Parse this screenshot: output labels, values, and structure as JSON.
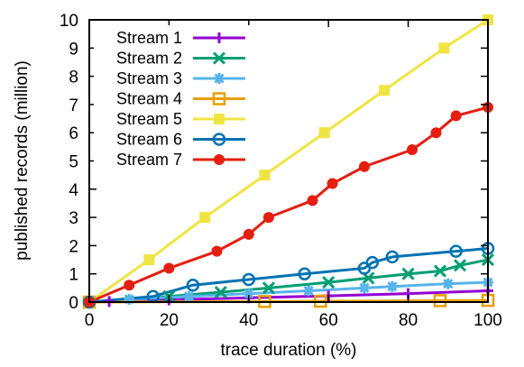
{
  "chart_data": {
    "type": "line",
    "title": "",
    "xlabel": "trace duration (%)",
    "ylabel": "published records (million)",
    "xlim": [
      0,
      100
    ],
    "ylim": [
      0,
      10
    ],
    "xticks": [
      0,
      20,
      40,
      60,
      80,
      100
    ],
    "yticks": [
      0,
      1,
      2,
      3,
      4,
      5,
      6,
      7,
      8,
      9,
      10
    ],
    "grid": false,
    "legend_position": "top-left",
    "series": [
      {
        "name": "Stream 1",
        "color": "#9400d3",
        "marker": "plus",
        "x": [
          0,
          5,
          20,
          40,
          60,
          80,
          100
        ],
        "y": [
          0,
          0.02,
          0.08,
          0.15,
          0.22,
          0.3,
          0.4
        ]
      },
      {
        "name": "Stream 2",
        "color": "#009e73",
        "marker": "x",
        "x": [
          0,
          20,
          33,
          45,
          60,
          70,
          80,
          88,
          93,
          100
        ],
        "y": [
          0,
          0.2,
          0.35,
          0.5,
          0.7,
          0.85,
          1.0,
          1.1,
          1.3,
          1.5
        ]
      },
      {
        "name": "Stream 3",
        "color": "#56b4e9",
        "marker": "asterisk",
        "x": [
          0,
          10,
          25,
          40,
          55,
          69,
          76,
          90,
          100
        ],
        "y": [
          0,
          0.1,
          0.2,
          0.3,
          0.4,
          0.5,
          0.55,
          0.65,
          0.7
        ]
      },
      {
        "name": "Stream 4",
        "color": "#e69f00",
        "marker": "square",
        "x": [
          0,
          44,
          58,
          88,
          100
        ],
        "y": [
          0,
          0.02,
          0.03,
          0.05,
          0.06
        ]
      },
      {
        "name": "Stream 5",
        "color": "#f0e442",
        "marker": "filled-square",
        "x": [
          0,
          15,
          29,
          44,
          59,
          74,
          89,
          100
        ],
        "y": [
          0,
          1.5,
          3.0,
          4.5,
          6.0,
          7.5,
          9.0,
          10.0
        ]
      },
      {
        "name": "Stream 6",
        "color": "#0072b2",
        "marker": "circle",
        "x": [
          0,
          16,
          26,
          40,
          54,
          69,
          71,
          76,
          92,
          100
        ],
        "y": [
          0,
          0.2,
          0.6,
          0.8,
          1.0,
          1.2,
          1.4,
          1.6,
          1.8,
          1.9
        ]
      },
      {
        "name": "Stream 7",
        "color": "#e51e10",
        "marker": "filled-circle",
        "x": [
          0,
          10,
          20,
          32,
          40,
          45,
          56,
          61,
          69,
          81,
          87,
          92,
          100
        ],
        "y": [
          0,
          0.6,
          1.2,
          1.8,
          2.4,
          3.0,
          3.6,
          4.2,
          4.8,
          5.4,
          6.0,
          6.6,
          6.9
        ]
      }
    ]
  }
}
